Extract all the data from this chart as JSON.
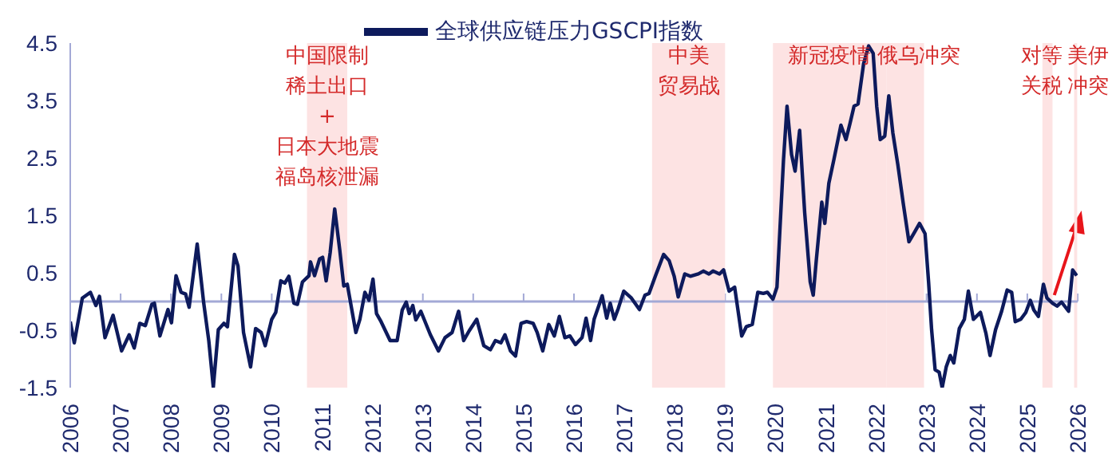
{
  "chart_data": {
    "type": "line",
    "legend": "top",
    "x": [
      2006.0,
      2006.08,
      2006.24,
      2006.4,
      2006.51,
      2006.58,
      2006.69,
      2006.85,
      2007.02,
      2007.17,
      2007.27,
      2007.38,
      2007.49,
      2007.62,
      2007.67,
      2007.78,
      2007.94,
      2008.01,
      2008.1,
      2008.2,
      2008.29,
      2008.36,
      2008.52,
      2008.65,
      2008.75,
      2008.84,
      2008.94,
      2009.05,
      2009.12,
      2009.26,
      2009.33,
      2009.44,
      2009.58,
      2009.68,
      2009.79,
      2009.87,
      2010.0,
      2010.08,
      2010.18,
      2010.26,
      2010.34,
      2010.44,
      2010.51,
      2010.61,
      2010.74,
      2010.77,
      2010.85,
      2010.95,
      2011.01,
      2011.08,
      2011.16,
      2011.25,
      2011.35,
      2011.43,
      2011.5,
      2011.67,
      2011.75,
      2011.85,
      2011.93,
      2012.01,
      2012.08,
      2012.17,
      2012.35,
      2012.49,
      2012.59,
      2012.67,
      2012.73,
      2012.8,
      2012.86,
      2012.96,
      2013.15,
      2013.31,
      2013.44,
      2013.58,
      2013.71,
      2013.81,
      2013.92,
      2014.07,
      2014.21,
      2014.34,
      2014.44,
      2014.55,
      2014.63,
      2014.74,
      2014.84,
      2014.95,
      2015.06,
      2015.19,
      2015.27,
      2015.38,
      2015.5,
      2015.61,
      2015.71,
      2015.82,
      2015.92,
      2016.03,
      2016.16,
      2016.24,
      2016.33,
      2016.4,
      2016.51,
      2016.56,
      2016.65,
      2016.72,
      2016.8,
      2016.88,
      2016.99,
      2017.14,
      2017.3,
      2017.41,
      2017.49,
      2017.62,
      2017.78,
      2017.89,
      2017.99,
      2018.07,
      2018.2,
      2018.31,
      2018.47,
      2018.57,
      2018.68,
      2018.76,
      2018.89,
      2018.97,
      2019.08,
      2019.19,
      2019.33,
      2019.42,
      2019.54,
      2019.65,
      2019.76,
      2019.84,
      2019.95,
      2020.03,
      2020.16,
      2020.23,
      2020.32,
      2020.39,
      2020.48,
      2020.58,
      2020.69,
      2020.75,
      2020.81,
      2020.92,
      2020.98,
      2021.06,
      2021.16,
      2021.3,
      2021.4,
      2021.48,
      2021.56,
      2021.64,
      2021.75,
      2021.85,
      2021.94,
      2022.01,
      2022.08,
      2022.17,
      2022.25,
      2022.33,
      2022.43,
      2022.54,
      2022.65,
      2022.75,
      2022.86,
      2022.97,
      2023.04,
      2023.1,
      2023.17,
      2023.25,
      2023.31,
      2023.39,
      2023.47,
      2023.54,
      2023.65,
      2023.75,
      2023.83,
      2023.93,
      2024.07,
      2024.18,
      2024.26,
      2024.37,
      2024.49,
      2024.6,
      2024.69,
      2024.76,
      2024.87,
      2024.97,
      2025.06,
      2025.13,
      2025.22,
      2025.32,
      2025.39,
      2025.5,
      2025.59,
      2025.68,
      2025.82,
      2025.9,
      2025.98
    ],
    "series": [
      {
        "name": "全球供应链压力GSCPI指数",
        "color": "#0d1a5c",
        "values": [
          -0.35,
          -0.72,
          0.06,
          0.16,
          -0.07,
          0.09,
          -0.63,
          -0.24,
          -0.86,
          -0.58,
          -0.81,
          -0.38,
          -0.42,
          -0.05,
          -0.03,
          -0.6,
          -0.14,
          -0.37,
          0.45,
          0.16,
          0.13,
          -0.1,
          1.0,
          -0.03,
          -0.68,
          -1.49,
          -0.49,
          -0.38,
          -0.44,
          0.82,
          0.62,
          -0.54,
          -1.14,
          -0.47,
          -0.54,
          -0.77,
          -0.31,
          -0.19,
          0.36,
          0.32,
          0.44,
          -0.03,
          -0.05,
          0.34,
          0.45,
          0.69,
          0.45,
          0.74,
          0.77,
          0.36,
          0.85,
          1.61,
          0.9,
          0.27,
          0.3,
          -0.54,
          -0.31,
          0.16,
          0.02,
          0.39,
          -0.21,
          -0.35,
          -0.68,
          -0.68,
          -0.15,
          -0.01,
          -0.21,
          -0.07,
          -0.32,
          -0.17,
          -0.58,
          -0.86,
          -0.63,
          -0.54,
          -0.17,
          -0.68,
          -0.51,
          -0.31,
          -0.77,
          -0.84,
          -0.68,
          -0.72,
          -0.58,
          -0.86,
          -0.95,
          -0.38,
          -0.35,
          -0.38,
          -0.54,
          -0.86,
          -0.4,
          -0.6,
          -0.26,
          -0.63,
          -0.6,
          -0.75,
          -0.63,
          -0.29,
          -0.68,
          -0.31,
          -0.03,
          0.1,
          -0.29,
          -0.03,
          -0.31,
          -0.12,
          0.18,
          0.06,
          -0.14,
          0.11,
          0.14,
          0.45,
          0.82,
          0.71,
          0.44,
          0.08,
          0.48,
          0.44,
          0.48,
          0.53,
          0.48,
          0.53,
          0.48,
          0.55,
          0.18,
          0.25,
          -0.6,
          -0.44,
          -0.4,
          0.16,
          0.14,
          0.16,
          0.04,
          0.25,
          2.47,
          3.4,
          2.56,
          2.27,
          2.98,
          1.55,
          0.34,
          0.11,
          0.71,
          1.73,
          1.36,
          2.06,
          2.47,
          3.07,
          2.82,
          3.1,
          3.4,
          3.44,
          4.14,
          4.45,
          4.32,
          3.4,
          2.82,
          2.88,
          3.58,
          2.94,
          2.38,
          1.69,
          1.04,
          1.19,
          1.36,
          1.18,
          0.34,
          -0.49,
          -1.19,
          -1.23,
          -1.5,
          -1.14,
          -0.94,
          -1.07,
          -0.47,
          -0.31,
          0.18,
          -0.31,
          -0.19,
          -0.56,
          -0.94,
          -0.49,
          -0.17,
          0.2,
          0.16,
          -0.35,
          -0.31,
          -0.19,
          0.02,
          -0.15,
          -0.26,
          0.3,
          0.06,
          -0.03,
          -0.08,
          -0.01,
          -0.17,
          0.55,
          0.45
        ]
      }
    ],
    "xlim": [
      2006,
      2026
    ],
    "xticks": [
      2006,
      2007,
      2008,
      2009,
      2010,
      2011,
      2012,
      2013,
      2014,
      2015,
      2016,
      2017,
      2018,
      2019,
      2020,
      2021,
      2022,
      2023,
      2024,
      2025,
      2026
    ],
    "ylim": [
      -1.5,
      4.5
    ],
    "yticks": [
      -1.5,
      -0.5,
      0.5,
      1.5,
      2.5,
      3.5,
      4.5
    ],
    "ref_lines": [
      {
        "axis": "y",
        "value": 0,
        "color": "#a3a9d6"
      }
    ],
    "bands": [
      {
        "axis": "x",
        "from": 2010.7,
        "to": 2011.5,
        "label": "中国限制稀土出口+日本大地震福岛核泄漏",
        "color": "#fde3e3"
      },
      {
        "axis": "x",
        "from": 2017.55,
        "to": 2019.0,
        "label": "中美贸易战",
        "color": "#fde3e3"
      },
      {
        "axis": "x",
        "from": 2019.95,
        "to": 2022.2,
        "label": "新冠疫情",
        "color": "#fde3e3"
      },
      {
        "axis": "x",
        "from": 2022.2,
        "to": 2022.95,
        "label": "俄乌冲突",
        "color": "#fde3e3"
      },
      {
        "axis": "x",
        "from": 2025.3,
        "to": 2025.5,
        "label": "对等关税",
        "color": "#fde3e3"
      },
      {
        "axis": "x",
        "from": 2025.93,
        "to": 2025.99,
        "label": "美伊冲突",
        "color": "#fde3e3"
      }
    ]
  }
}
